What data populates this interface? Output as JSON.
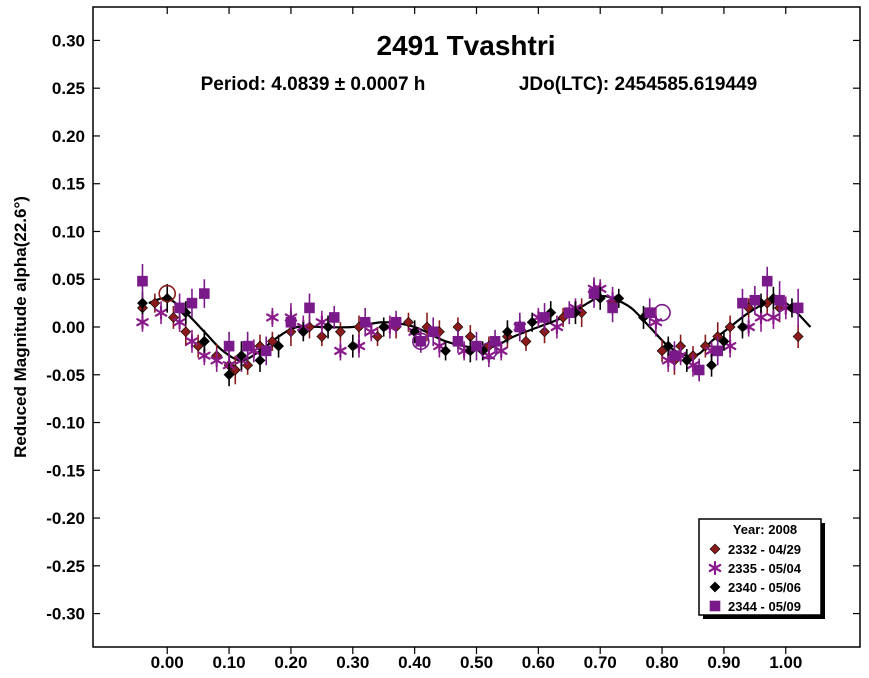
{
  "chart_data": {
    "type": "scatter",
    "title": "2491 Tvashtri",
    "subtitle_period": "Period: 4.0839 ± 0.0007 h",
    "subtitle_epoch": "JDo(LTC): 2454585.619449",
    "xlabel": "",
    "ylabel": "Reduced Magnitude alpha(22.6°)",
    "xlim": [
      -0.12,
      1.12
    ],
    "ylim": [
      0.335,
      -0.335
    ],
    "y_inverted": true,
    "x_ticks": [
      0.0,
      0.1,
      0.2,
      0.3,
      0.4,
      0.5,
      0.6,
      0.7,
      0.8,
      0.9,
      1.0
    ],
    "x_tick_labels": [
      "0.00",
      "0.10",
      "0.20",
      "0.30",
      "0.40",
      "0.50",
      "0.60",
      "0.70",
      "0.80",
      "0.90",
      "1.00"
    ],
    "y_ticks": [
      -0.3,
      -0.25,
      -0.2,
      -0.15,
      -0.1,
      -0.05,
      0.0,
      0.05,
      0.1,
      0.15,
      0.2,
      0.25,
      0.3
    ],
    "y_tick_labels": [
      "-0.30",
      "-0.25",
      "-0.20",
      "-0.15",
      "-0.10",
      "-0.05",
      "0.00",
      "0.05",
      "0.10",
      "0.15",
      "0.20",
      "0.25",
      "0.30"
    ],
    "grid": false,
    "legend_position": "bottom-right",
    "legend_title": "Year: 2008",
    "fit_curve": {
      "name": "",
      "color": "#000000",
      "x": [
        -0.03,
        0.0,
        0.03,
        0.06,
        0.09,
        0.12,
        0.15,
        0.18,
        0.21,
        0.25,
        0.3,
        0.35,
        0.4,
        0.45,
        0.5,
        0.53,
        0.56,
        0.6,
        0.64,
        0.68,
        0.7,
        0.72,
        0.75,
        0.78,
        0.81,
        0.84,
        0.86,
        0.88,
        0.91,
        0.94,
        0.97,
        1.0,
        1.04
      ],
      "y": [
        0.025,
        0.03,
        0.015,
        -0.005,
        -0.025,
        -0.035,
        -0.025,
        -0.01,
        0.0,
        0.0,
        0.0,
        0.005,
        0.0,
        -0.015,
        -0.022,
        -0.02,
        -0.01,
        0.0,
        0.01,
        0.025,
        0.032,
        0.03,
        0.02,
        0.0,
        -0.02,
        -0.03,
        -0.028,
        -0.015,
        0.0,
        0.015,
        0.025,
        0.025,
        0.0
      ]
    },
    "series": [
      {
        "name": "2332 - 04/29",
        "marker": "diamond",
        "color": "#8b1a1a",
        "x": [
          -0.04,
          -0.02,
          0.01,
          0.03,
          0.05,
          0.06,
          0.08,
          0.1,
          0.11,
          0.13,
          0.15,
          0.17,
          0.2,
          0.23,
          0.25,
          0.28,
          0.31,
          0.34,
          0.37,
          0.39,
          0.42,
          0.44,
          0.47,
          0.49,
          0.52,
          0.55,
          0.58,
          0.61,
          0.64,
          0.67,
          0.72,
          0.8,
          0.82,
          0.83,
          0.85,
          0.87,
          0.89,
          0.91,
          0.94,
          0.97,
          0.99,
          1.02
        ],
        "y": [
          0.02,
          0.025,
          0.01,
          -0.005,
          -0.02,
          -0.015,
          -0.03,
          -0.04,
          -0.045,
          -0.04,
          -0.02,
          -0.015,
          -0.005,
          0.0,
          -0.01,
          -0.005,
          0.0,
          -0.01,
          0.0,
          0.005,
          0.0,
          -0.005,
          0.0,
          -0.01,
          -0.02,
          -0.01,
          -0.015,
          -0.005,
          0.01,
          0.015,
          0.025,
          -0.025,
          -0.035,
          -0.02,
          -0.03,
          -0.02,
          -0.01,
          0.0,
          0.02,
          0.025,
          0.02,
          -0.01
        ],
        "err": [
          0.012,
          0.01,
          0.012,
          0.015,
          0.012,
          0.01,
          0.012,
          0.015,
          0.015,
          0.01,
          0.012,
          0.01,
          0.015,
          0.012,
          0.01,
          0.01,
          0.012,
          0.01,
          0.012,
          0.01,
          0.015,
          0.012,
          0.01,
          0.012,
          0.01,
          0.012,
          0.01,
          0.012,
          0.01,
          0.015,
          0.012,
          0.012,
          0.015,
          0.012,
          0.01,
          0.012,
          0.015,
          0.012,
          0.01,
          0.012,
          0.015,
          0.012
        ]
      },
      {
        "name": "2335 - 05/04",
        "marker": "asterisk",
        "color": "#8a1a8a",
        "x": [
          -0.04,
          -0.01,
          0.02,
          0.04,
          0.06,
          0.08,
          0.1,
          0.12,
          0.14,
          0.17,
          0.2,
          0.22,
          0.25,
          0.28,
          0.31,
          0.33,
          0.36,
          0.4,
          0.44,
          0.48,
          0.52,
          0.54,
          0.57,
          0.6,
          0.63,
          0.66,
          0.69,
          0.7,
          0.72,
          0.79,
          0.81,
          0.83,
          0.85,
          0.88,
          0.91,
          0.94,
          0.96,
          0.98,
          1.0
        ],
        "y": [
          0.005,
          0.015,
          0.005,
          -0.015,
          -0.03,
          -0.035,
          -0.04,
          -0.035,
          -0.025,
          0.01,
          0.01,
          0.0,
          0.005,
          -0.025,
          -0.02,
          -0.005,
          0.0,
          -0.005,
          -0.02,
          -0.025,
          -0.03,
          -0.025,
          0.0,
          0.01,
          0.0,
          0.02,
          0.04,
          0.04,
          0.03,
          0.005,
          -0.035,
          -0.03,
          -0.04,
          -0.025,
          -0.02,
          0.0,
          0.01,
          0.01,
          0.02
        ],
        "err": [
          0.01,
          0.012,
          0.01,
          0.012,
          0.01,
          0.012,
          0.01,
          0.012,
          0.012,
          0.01,
          0.015,
          0.012,
          0.012,
          0.01,
          0.012,
          0.01,
          0.012,
          0.01,
          0.012,
          0.01,
          0.012,
          0.01,
          0.012,
          0.01,
          0.012,
          0.01,
          0.012,
          0.01,
          0.012,
          0.015,
          0.012,
          0.01,
          0.012,
          0.01,
          0.012,
          0.01,
          0.015,
          0.012,
          0.012
        ]
      },
      {
        "name": "2340 - 05/06",
        "marker": "diamond",
        "color": "#000000",
        "x": [
          -0.04,
          0.0,
          0.03,
          0.06,
          0.1,
          0.12,
          0.15,
          0.18,
          0.22,
          0.26,
          0.3,
          0.35,
          0.4,
          0.45,
          0.49,
          0.51,
          0.55,
          0.59,
          0.62,
          0.66,
          0.7,
          0.73,
          0.77,
          0.81,
          0.84,
          0.86,
          0.88,
          0.9,
          0.93,
          0.96,
          0.98,
          1.01
        ],
        "y": [
          0.025,
          0.03,
          0.015,
          -0.015,
          -0.05,
          -0.03,
          -0.035,
          -0.02,
          -0.005,
          0.0,
          -0.02,
          0.0,
          -0.005,
          -0.025,
          -0.025,
          -0.025,
          -0.005,
          0.005,
          0.015,
          0.015,
          0.03,
          0.03,
          0.01,
          -0.02,
          -0.035,
          -0.045,
          -0.04,
          -0.015,
          0.0,
          0.025,
          0.03,
          0.02
        ],
        "err": [
          0.012,
          0.015,
          0.012,
          0.012,
          0.012,
          0.015,
          0.012,
          0.012,
          0.01,
          0.012,
          0.012,
          0.01,
          0.012,
          0.01,
          0.012,
          0.01,
          0.012,
          0.01,
          0.012,
          0.012,
          0.012,
          0.01,
          0.012,
          0.01,
          0.012,
          0.01,
          0.012,
          0.01,
          0.012,
          0.01,
          0.012,
          0.01
        ]
      },
      {
        "name": "2344 - 05/09",
        "marker": "square",
        "color": "#7a1a8a",
        "x": [
          -0.04,
          0.02,
          0.04,
          0.06,
          0.1,
          0.13,
          0.16,
          0.2,
          0.23,
          0.27,
          0.32,
          0.37,
          0.41,
          0.43,
          0.47,
          0.5,
          0.53,
          0.57,
          0.61,
          0.65,
          0.69,
          0.72,
          0.78,
          0.82,
          0.86,
          0.89,
          0.93,
          0.95,
          0.97,
          0.99,
          1.02
        ],
        "y": [
          0.048,
          0.02,
          0.025,
          0.035,
          -0.02,
          -0.02,
          -0.025,
          0.005,
          0.02,
          0.01,
          0.005,
          0.005,
          -0.015,
          -0.005,
          -0.015,
          -0.02,
          -0.015,
          0.0,
          0.01,
          0.015,
          0.035,
          0.02,
          0.015,
          -0.03,
          -0.045,
          -0.025,
          0.025,
          0.028,
          0.048,
          0.028,
          0.02
        ],
        "err": [
          0.018,
          0.015,
          0.015,
          0.015,
          0.015,
          0.015,
          0.015,
          0.015,
          0.015,
          0.012,
          0.015,
          0.012,
          0.012,
          0.015,
          0.012,
          0.015,
          0.012,
          0.015,
          0.015,
          0.012,
          0.015,
          0.015,
          0.015,
          0.015,
          0.012,
          0.015,
          0.015,
          0.015,
          0.015,
          0.02,
          0.02
        ]
      }
    ],
    "highlighted_points": [
      {
        "x": 0.0,
        "y": 0.035,
        "color": "#8b1a1a"
      },
      {
        "x": 0.41,
        "y": -0.015,
        "color": "#7a1a8a"
      },
      {
        "x": 0.52,
        "y": -0.025,
        "color": "#7a1a8a"
      },
      {
        "x": 0.8,
        "y": 0.015,
        "color": "#7a1a8a"
      }
    ]
  }
}
